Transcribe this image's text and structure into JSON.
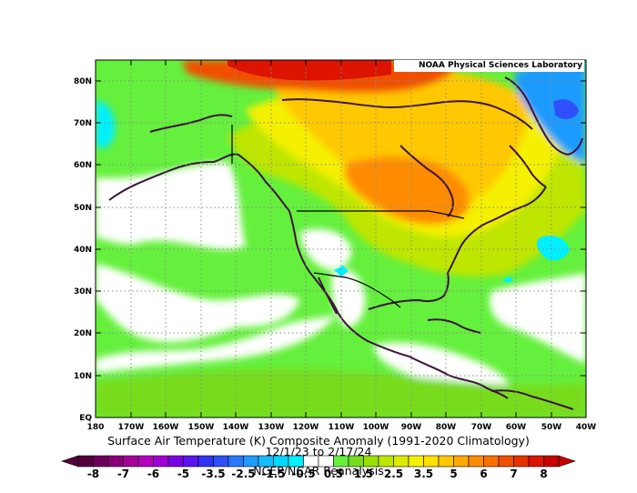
{
  "credit": "NOAA Physical Sciences Laboratory",
  "caption": {
    "line1": "Surface Air Temperature (K) Composite Anomaly (1991-2020 Climatology)",
    "line2": "12/1/23  to 2/17/24",
    "line3": "NCEP/NCAR Reanalysis"
  },
  "lat_labels": [
    "80N",
    "70N",
    "60N",
    "50N",
    "40N",
    "30N",
    "20N",
    "10N",
    "EQ"
  ],
  "lon_labels": [
    "180",
    "170W",
    "160W",
    "150W",
    "140W",
    "130W",
    "120W",
    "110W",
    "100W",
    "90W",
    "80W",
    "70W",
    "60W",
    "50W",
    "40W"
  ],
  "colorbar": {
    "labels": [
      "-8",
      "-7",
      "-6",
      "-5",
      "-3.5",
      "-2.5",
      "-1.5",
      "-0.5",
      "0.5",
      "1.5",
      "2.5",
      "3.5",
      "5",
      "6",
      "7",
      "8"
    ],
    "colors": [
      "#52003d",
      "#6e0059",
      "#8a0078",
      "#a60096",
      "#b500bd",
      "#a000d6",
      "#7a00e6",
      "#5a14f0",
      "#3232f5",
      "#2e50fa",
      "#2878ff",
      "#1e9bff",
      "#14bdff",
      "#00d7ff",
      "#00f0ff",
      "#ffffff",
      "#ffffff",
      "#64f03c",
      "#78dc1e",
      "#9be100",
      "#bee600",
      "#dceb00",
      "#f5f000",
      "#ffe100",
      "#ffc800",
      "#ffaa00",
      "#ff8c00",
      "#ff6e00",
      "#f05000",
      "#e63200",
      "#dc1400",
      "#c80000"
    ]
  },
  "colors": {
    "white": "#ffffff",
    "green": "#64f03c",
    "green_dark": "#78dc1e",
    "yellow_green": "#bee600",
    "yellow": "#f5f000",
    "orange_light": "#ffc800",
    "orange": "#ff8c00",
    "red_orange": "#f05000",
    "red": "#dc1400",
    "cyan": "#00f0ff",
    "light_blue": "#1e9bff",
    "blue": "#2e50fa",
    "coast": "#3c143c"
  }
}
